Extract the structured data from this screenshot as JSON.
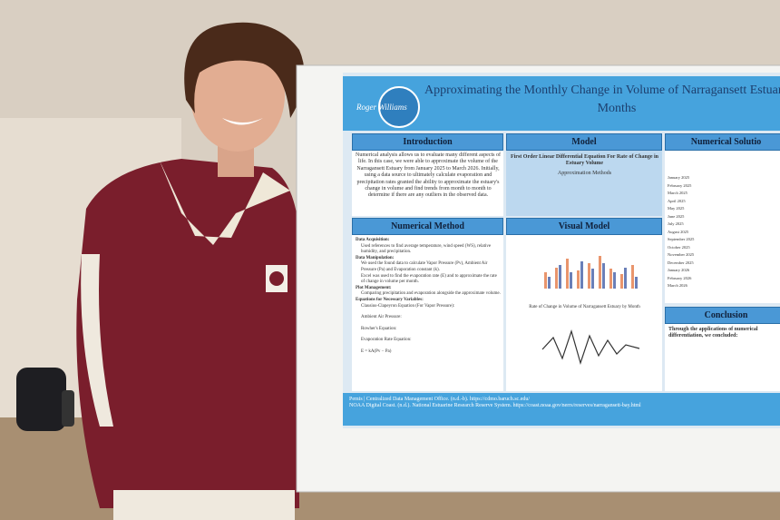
{
  "poster": {
    "logo": "Roger Williams",
    "title": [
      "Approximating the Monthly Change in Volume of Narragansett Estuary O",
      "Months"
    ],
    "sections": {
      "introduction": {
        "heading": "Introduction",
        "text": "Numerical analysis allows us to evaluate many different aspects of life. In this case, we were able to approximate the volume of the Narragansett Estuary from January 2025 to March 2026. Initially, using a data source to ultimately calculate evaporation and precipitation rates granted the ability to approximate the estuary's change in volume and find trends from month to month to determine if there are any outliers in the observed data."
      },
      "model": {
        "heading": "Model",
        "subtitle": "First Order Linear Differential Equation For Rate of Change in Estuary Volume",
        "methods": "Approximation Methods"
      },
      "numerical_solution": {
        "heading": "Numerical Solutio",
        "months": [
          "January 2025",
          "February 2025",
          "March 2025",
          "April 2025",
          "May 2025",
          "June 2025",
          "July 2025",
          "August 2025",
          "September 2025",
          "October 2025",
          "November 2025",
          "December 2025",
          "January 2026",
          "February 2026",
          "March 2026"
        ]
      },
      "numerical_method": {
        "heading": "Numerical Method",
        "items": [
          "Data Acquisition:",
          "Used references to find average temperature, wind speed (WS), relative humidity, and precipitation.",
          "Data Manipulation:",
          "We used the found data to calculate Vapor Pressure (Pv), Ambient Air Pressure (Pa) and Evaporation constant (k).",
          "Excel was used to find the evaporation rate (E) and to approximate the rate of change in volume per month.",
          "Plot Management:",
          "Comparing precipitation and evaporation alongside the approximate volume.",
          "Equations for Necessary Variables:",
          "Clausius-Clapeyron Equation (For Vapor Pressure):",
          "Ambient Air Pressure:",
          "Rowher's Equation:",
          "Evaporation Rate Equation:",
          "E = kA(Pv − Pa)"
        ]
      },
      "visual_model": {
        "heading": "Visual Model",
        "chart_title": "Rate of Change in Volume of Narragansett Estuary by Month"
      },
      "conclusion": {
        "heading": "Conclusion",
        "text": "Through the applications of numerical differentiation, we concluded:"
      }
    },
    "references": [
      "Pemis | Centralized Data Management Office. (n.d.-b). https://cdmo.baruch.sc.edu/",
      "NOAA Digital Coast. (n.d.). National Estuarine Research Reserve System. https://coast.noaa.gov/nerrs/reserves/narragansett-bay.html"
    ]
  }
}
